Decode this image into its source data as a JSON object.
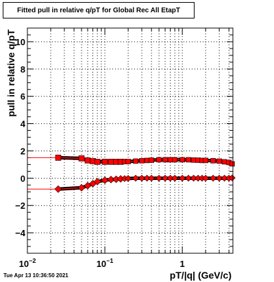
{
  "title": "Fitted pull in relative q/pT for Global Rec All EtapT",
  "timestamp": "Tue Apr 13 10:36:50 2021",
  "colors": {
    "series": "#ff0000",
    "black_band": "#000000",
    "grid": "#000000"
  },
  "chart_data": {
    "type": "scatter",
    "title": "Fitted pull in relative q/pT for Global Rec All EtapT",
    "xlabel": "pT/|q| (GeV/c)",
    "ylabel": "pull in relative q/pT",
    "x_scale": "log",
    "xlim": [
      0.01,
      4.5
    ],
    "ylim": [
      -5.5,
      11
    ],
    "x_ticks": [
      {
        "value": 0.01,
        "label": "10",
        "sup": "-2"
      },
      {
        "value": 0.1,
        "label": "10",
        "sup": "-1"
      },
      {
        "value": 1,
        "label": "1",
        "sup": ""
      }
    ],
    "y_ticks": [
      -4,
      -2,
      0,
      2,
      4,
      6,
      8,
      10
    ],
    "grid": true,
    "series": [
      {
        "marker": "square",
        "x": [
          0.025,
          0.05,
          0.06,
          0.07,
          0.08,
          0.1,
          0.12,
          0.14,
          0.16,
          0.18,
          0.2,
          0.25,
          0.3,
          0.35,
          0.4,
          0.5,
          0.6,
          0.7,
          0.8,
          1.0,
          1.2,
          1.4,
          1.6,
          1.8,
          2.0,
          2.5,
          3.0,
          3.5,
          4.0,
          4.4
        ],
        "y": [
          1.5,
          1.45,
          1.3,
          1.25,
          1.2,
          1.2,
          1.2,
          1.2,
          1.2,
          1.22,
          1.22,
          1.25,
          1.28,
          1.3,
          1.32,
          1.35,
          1.35,
          1.35,
          1.35,
          1.35,
          1.35,
          1.33,
          1.32,
          1.3,
          1.3,
          1.28,
          1.25,
          1.2,
          1.15,
          1.05
        ]
      },
      {
        "marker": "diamond",
        "x": [
          0.025,
          0.05,
          0.06,
          0.07,
          0.08,
          0.1,
          0.12,
          0.14,
          0.16,
          0.18,
          0.2,
          0.25,
          0.3,
          0.35,
          0.4,
          0.5,
          0.6,
          0.7,
          0.8,
          1.0,
          1.2,
          1.4,
          1.6,
          1.8,
          2.0,
          2.5,
          3.0,
          3.5,
          4.0,
          4.4
        ],
        "y": [
          -0.8,
          -0.7,
          -0.55,
          -0.4,
          -0.25,
          -0.15,
          -0.1,
          -0.08,
          -0.05,
          -0.03,
          -0.02,
          0,
          0,
          0,
          0,
          0,
          0,
          0,
          0,
          0,
          0,
          0,
          0,
          0,
          0,
          0,
          0,
          0,
          0,
          0.02
        ]
      }
    ]
  }
}
